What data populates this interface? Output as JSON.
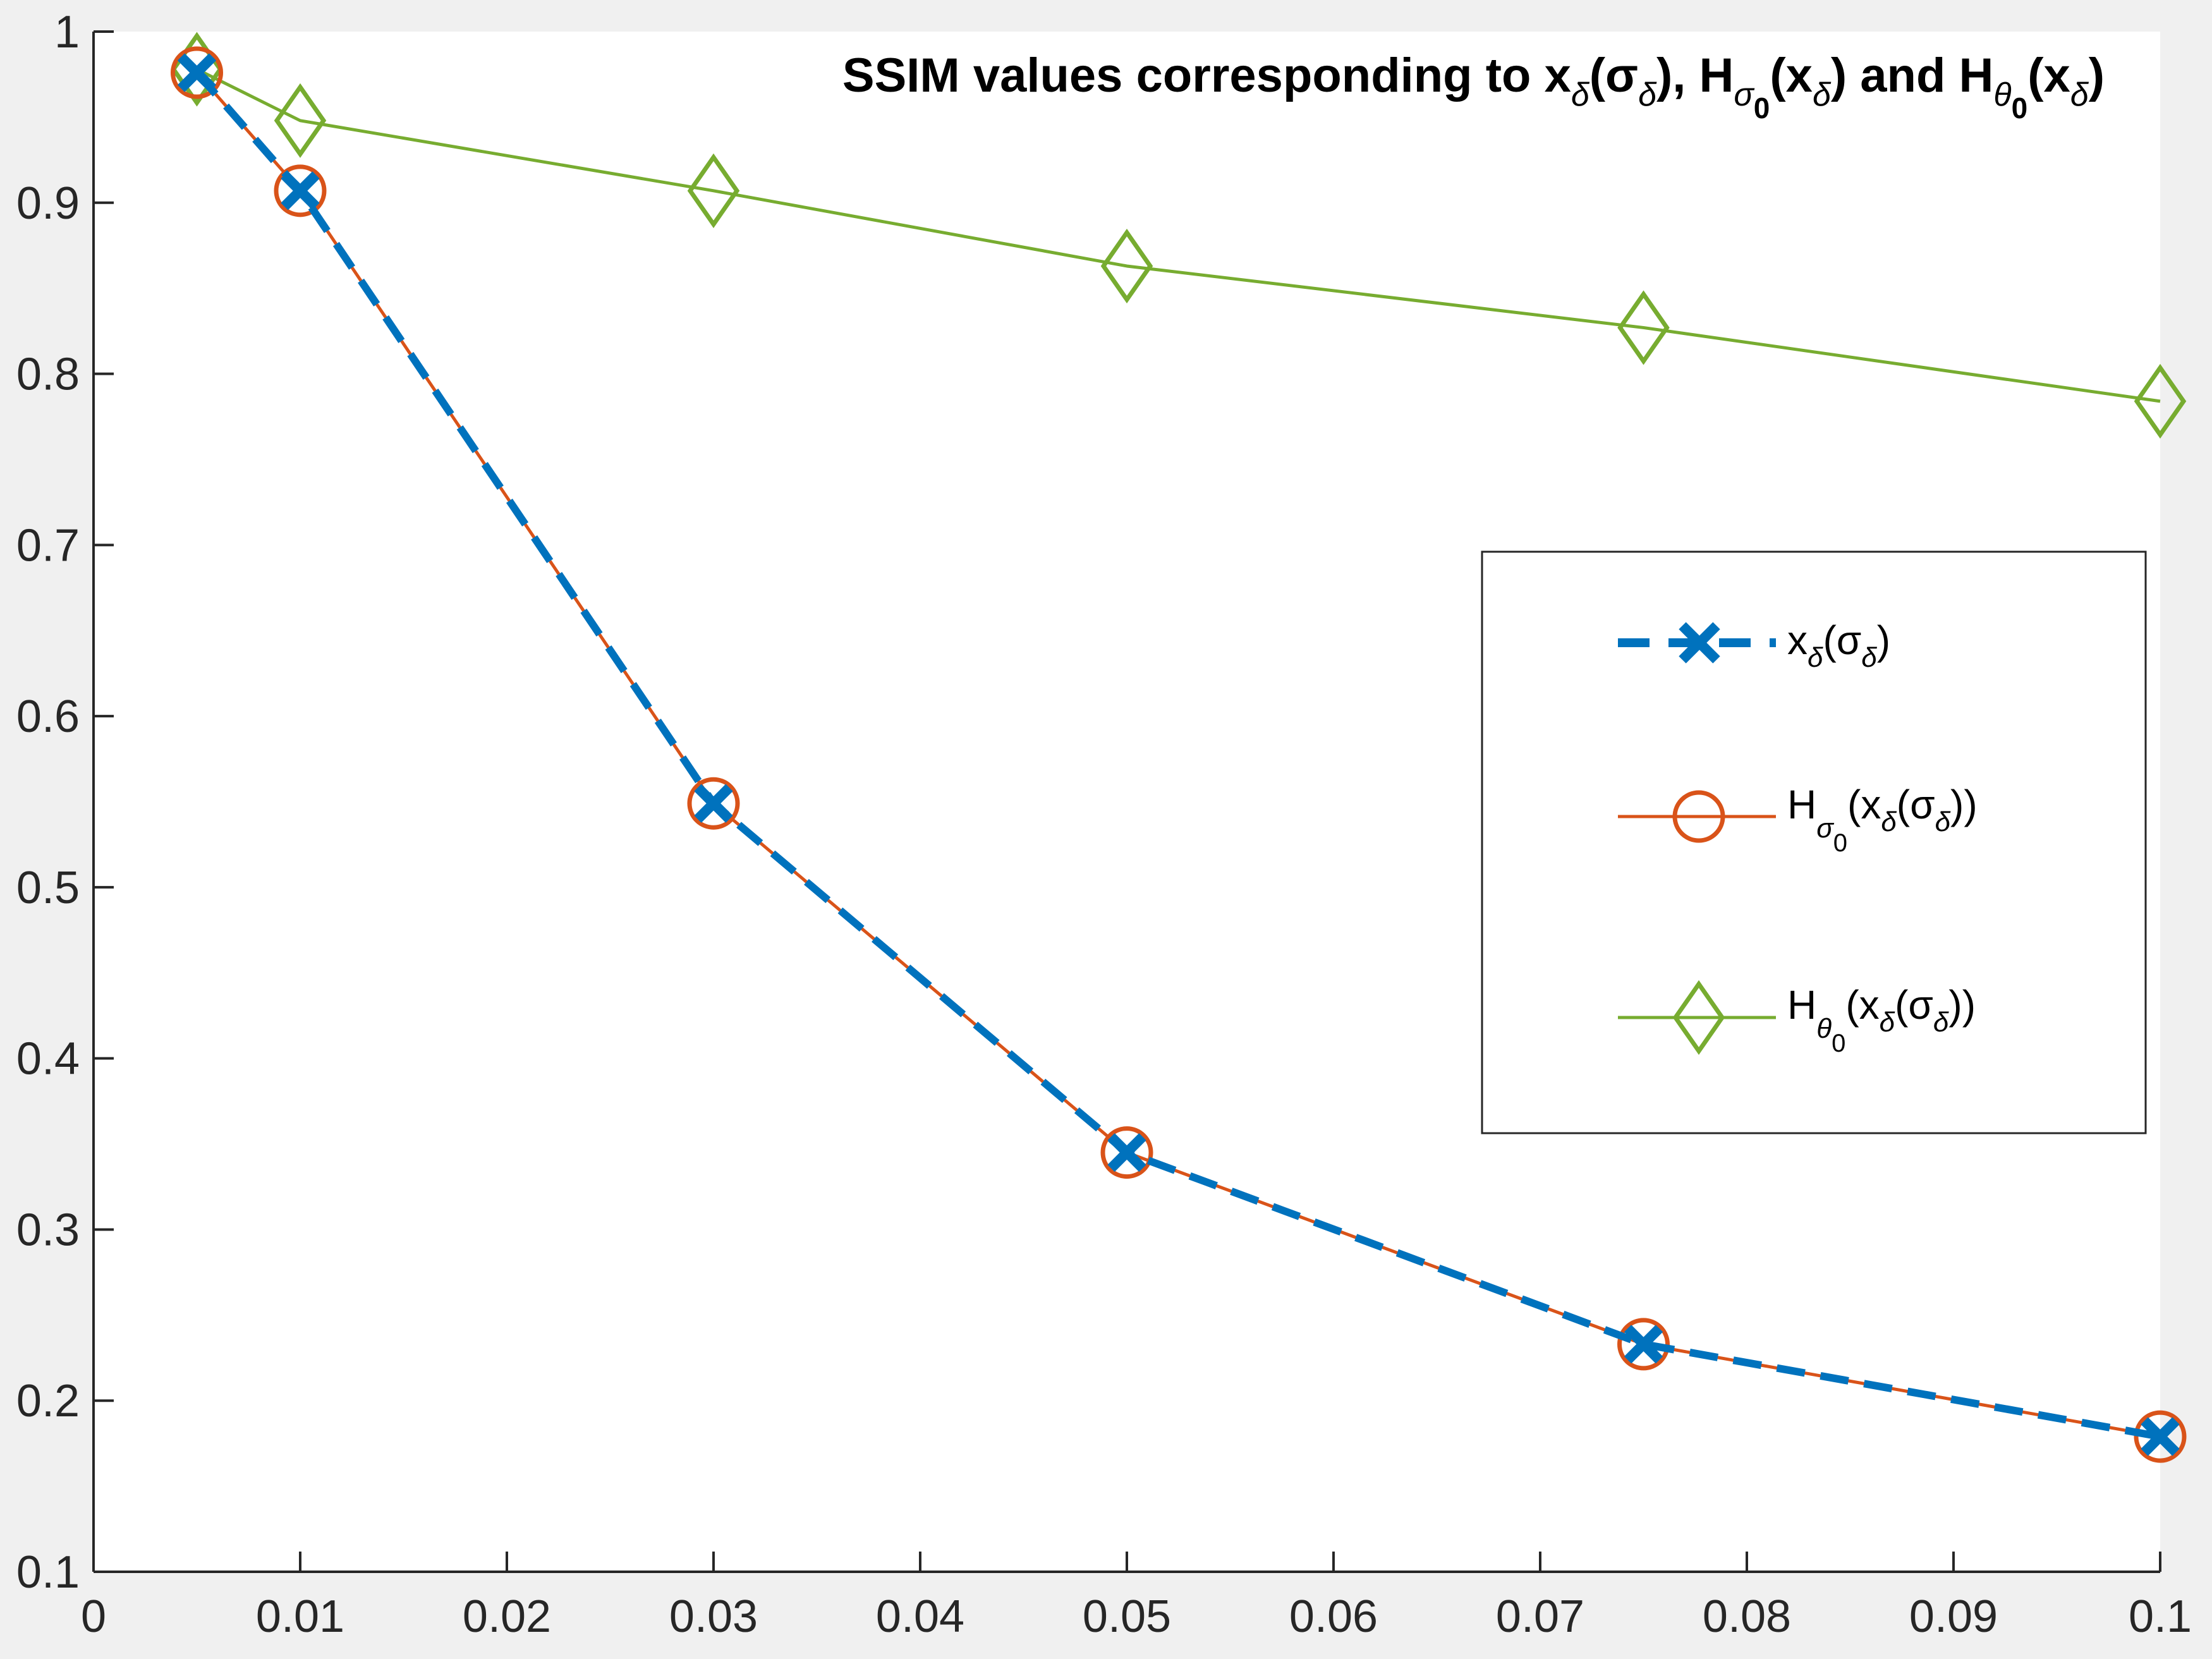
{
  "chart_data": {
    "type": "line",
    "title": "SSIM values corresponding to x_δ(σ_δ), H_σ0(x_δ) and H_θ0(x_δ)",
    "title_parts": {
      "prefix": "SSIM values corresponding to x",
      "sub1": "δ",
      "sigma_delta": "(σ",
      "sub2": "δ",
      "mid1": "), H",
      "sub3": "σ",
      "sub3b": "0",
      "mid2": "(x",
      "sub4": "δ",
      "mid3": ") and H",
      "sub5": "θ",
      "sub5b": "0",
      "mid4": "(x",
      "sub6": "δ",
      "suffix": ")"
    },
    "xlabel": "",
    "ylabel": "",
    "xlim": [
      0,
      0.1
    ],
    "ylim": [
      0.1,
      1
    ],
    "x_ticks": [
      "0",
      "0.01",
      "0.02",
      "0.03",
      "0.04",
      "0.05",
      "0.06",
      "0.07",
      "0.08",
      "0.09",
      "0.1"
    ],
    "y_ticks": [
      "0.1",
      "0.2",
      "0.3",
      "0.4",
      "0.5",
      "0.6",
      "0.7",
      "0.8",
      "0.9",
      "1"
    ],
    "x": [
      0.005,
      0.01,
      0.03,
      0.05,
      0.075,
      0.1
    ],
    "series": [
      {
        "name": "x_δ(σ_δ)",
        "color": "#0072bd",
        "marker": "x",
        "style": "dashed",
        "values": [
          0.976,
          0.907,
          0.549,
          0.345,
          0.233,
          0.179
        ]
      },
      {
        "name": "H_σ0(x_δ(σ_δ))",
        "color": "#d95319",
        "marker": "o",
        "style": "solid",
        "values": [
          0.976,
          0.907,
          0.549,
          0.345,
          0.233,
          0.179
        ]
      },
      {
        "name": "H_θ0(x_δ(σ_δ))",
        "color": "#77ac30",
        "marker": "diamond",
        "style": "solid",
        "values": [
          0.978,
          0.948,
          0.907,
          0.863,
          0.827,
          0.784
        ]
      }
    ],
    "legend": {
      "position": "right",
      "entries": [
        {
          "base": "x",
          "sub": "δ",
          "open": "(σ",
          "sub2": "δ",
          "close": ")"
        },
        {
          "base": "H",
          "sub": "σ",
          "subsub": "0",
          "open": "(x",
          "sub2": "δ",
          "open2": "(σ",
          "sub3": "δ",
          "close": "))"
        },
        {
          "base": "H",
          "sub": "θ",
          "subsub": "0",
          "open": "(x",
          "sub2": "δ",
          "open2": "(σ",
          "sub3": "δ",
          "close": "))"
        }
      ]
    },
    "grid": false
  }
}
